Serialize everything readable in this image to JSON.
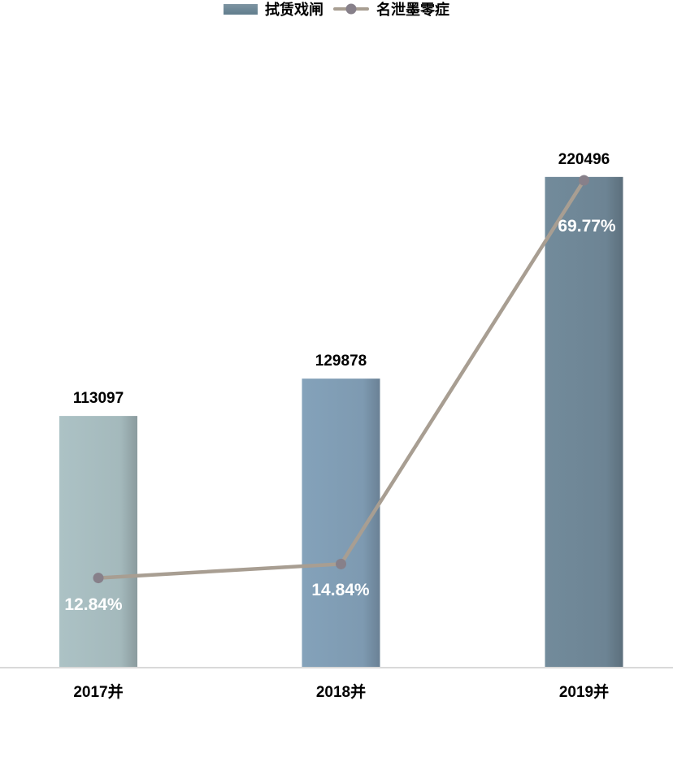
{
  "chart_data": {
    "type": "combo-bar-line",
    "title": "",
    "xlabel": "",
    "ylabel": "",
    "grid": false,
    "background": "#ffffff",
    "axis_line_color": "#d9d9d9",
    "legend_position": "bottom",
    "categories": [
      "2017并",
      "2018并",
      "2019并"
    ],
    "series": [
      {
        "name": "拭赁戏闸",
        "type": "bar",
        "values": [
          113097,
          129878,
          220496
        ],
        "value_labels": [
          "113097",
          "129878",
          "220496"
        ],
        "value_label_color": "#000000",
        "colors": [
          "#a4b9bc",
          "#7e9ab1",
          "#6d8494"
        ]
      },
      {
        "name": "名泄墨零症",
        "type": "line",
        "values": [
          12.84,
          14.84,
          69.77
        ],
        "value_labels": [
          "12.84%",
          "14.84%",
          "69.77%"
        ],
        "value_label_color": "#ffffff",
        "color": "#a89e92",
        "marker_color": "#87808a"
      }
    ],
    "bar_axis_range": [
      0,
      230000
    ],
    "line_axis_range": [
      0,
      75
    ]
  }
}
